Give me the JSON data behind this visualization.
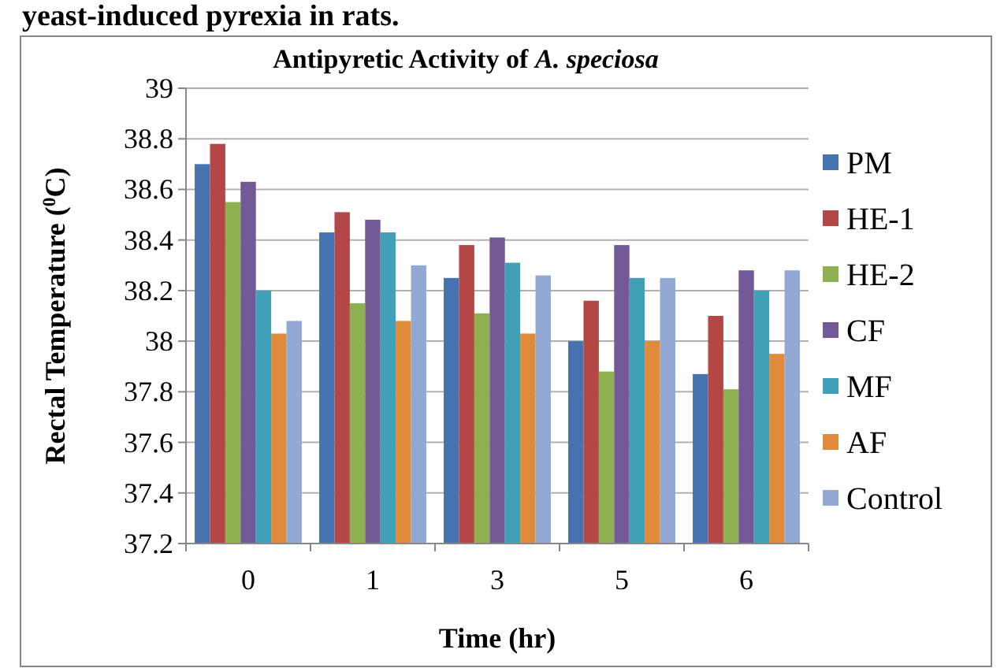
{
  "chart_data": {
    "type": "bar",
    "title": "Antipyretic Activity of A. speciosa",
    "annotations": [
      "yeast-induced pyrexia in rats."
    ],
    "xlabel": "Time (hr)",
    "ylabel": "Rectal Temperature ($^{0}$C)",
    "categories": [
      "0",
      "1",
      "3",
      "5",
      "6"
    ],
    "ylim": [
      37.2,
      39
    ],
    "yticks": [
      37.2,
      37.4,
      37.6,
      37.8,
      38,
      38.2,
      38.4,
      38.6,
      38.8,
      39
    ],
    "grid": "y",
    "legend": "right",
    "series": [
      {
        "name": "PM",
        "color": "#4672b0",
        "values": [
          38.7,
          38.43,
          38.25,
          38.0,
          37.87
        ]
      },
      {
        "name": "HE-1",
        "color": "#b24745",
        "values": [
          38.78,
          38.51,
          38.38,
          38.16,
          38.1
        ]
      },
      {
        "name": "HE-2",
        "color": "#8fb050",
        "values": [
          38.55,
          38.15,
          38.11,
          37.88,
          37.81
        ]
      },
      {
        "name": "CF",
        "color": "#735a96",
        "values": [
          38.63,
          38.48,
          38.41,
          38.38,
          38.28
        ]
      },
      {
        "name": "MF",
        "color": "#3fa0b7",
        "values": [
          38.2,
          38.43,
          38.31,
          38.25,
          38.2
        ]
      },
      {
        "name": "AF",
        "color": "#e08a3c",
        "values": [
          38.03,
          38.08,
          38.03,
          38.0,
          37.95
        ]
      },
      {
        "name": "Control",
        "color": "#92a9d4",
        "values": [
          38.08,
          38.3,
          38.26,
          38.25,
          38.28
        ]
      }
    ]
  }
}
